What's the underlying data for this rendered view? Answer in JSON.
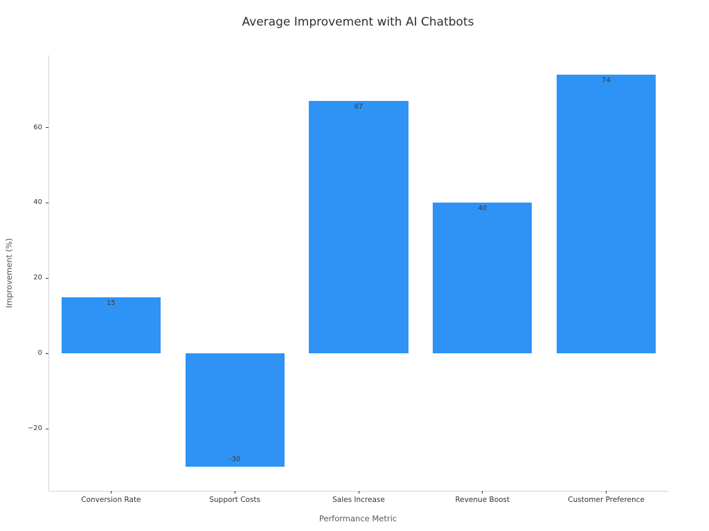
{
  "chart_data": {
    "type": "bar",
    "title": "Average Improvement with AI Chatbots",
    "xlabel": "Performance Metric",
    "ylabel": "Improvement (%)",
    "categories": [
      "Conversion Rate",
      "Support Costs",
      "Sales Increase",
      "Revenue Boost",
      "Customer Preference"
    ],
    "values": [
      15,
      -30,
      67,
      40,
      74
    ],
    "bar_labels": [
      "15",
      "-30",
      "67",
      "40",
      "74"
    ],
    "ylim": [
      -36.5,
      79.2
    ],
    "yticks": [
      -20,
      0,
      20,
      40,
      60
    ],
    "ytick_labels": [
      "−20",
      "0",
      "20",
      "40",
      "60"
    ],
    "grid": false,
    "legend": false,
    "bar_width_ratio": 0.8,
    "colors": {
      "bar": "#2E93F5",
      "background": "#ffffff",
      "title_text": "#2e2e2e",
      "tick_text": "#333333",
      "axis_title_text": "#585858",
      "spine": "#d4d4d4",
      "bar_value_text": "#3a3a3a"
    }
  }
}
